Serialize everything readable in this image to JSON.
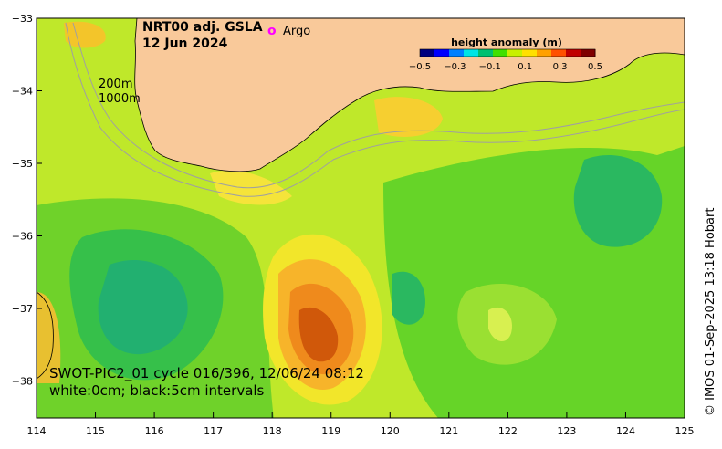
{
  "title": {
    "line1": "NRT00 adj. GSLA",
    "line2": "12 Jun 2024"
  },
  "legend": {
    "argo_marker": "o",
    "argo_label": "Argo",
    "argo_color": "#ff00ff"
  },
  "isobaths": {
    "label1": "200m",
    "label2": "1000m"
  },
  "colorbar": {
    "title": "height anomaly (m)",
    "ticks": [
      "−0.5",
      "−0.3",
      "−0.1",
      "0.1",
      "0.3",
      "0.5"
    ],
    "colors": [
      "#00007f",
      "#0000ff",
      "#0080ff",
      "#00e5e5",
      "#00c070",
      "#40e000",
      "#c8f000",
      "#ffe000",
      "#ffa000",
      "#ff5000",
      "#c00000",
      "#7f0000"
    ]
  },
  "swot": {
    "line1": "SWOT-PIC2_01 cycle 016/396, 12/06/24 08:12",
    "line2": "white:0cm; black:5cm intervals"
  },
  "credit": "© IMOS 01-Sep-2025 13:18 Hobart",
  "axes": {
    "x_ticks": [
      "114",
      "115",
      "116",
      "117",
      "118",
      "119",
      "120",
      "121",
      "122",
      "123",
      "124",
      "125"
    ],
    "y_ticks": [
      "−33",
      "−34",
      "−35",
      "−36",
      "−37",
      "−38"
    ]
  },
  "colors": {
    "land": "#f9c99a",
    "isobath": "#a0a0a0"
  }
}
